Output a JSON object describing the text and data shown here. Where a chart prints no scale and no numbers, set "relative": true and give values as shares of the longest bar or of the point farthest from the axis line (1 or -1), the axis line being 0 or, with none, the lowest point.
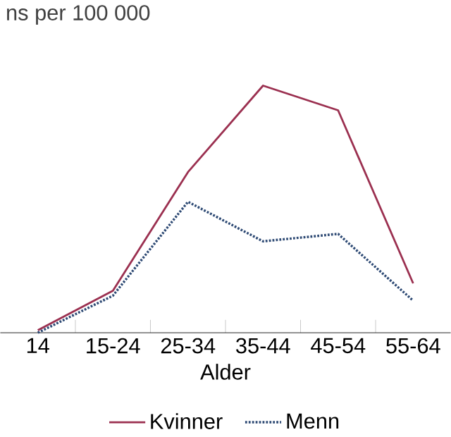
{
  "chart_data": {
    "type": "line",
    "relative": true,
    "ylabel": "ns per 100 000",
    "xlabel": "Alder",
    "categories": [
      "14",
      "15-24",
      "25-34",
      "35-44",
      "45-54",
      "55-64"
    ],
    "series": [
      {
        "name": "Kvinner",
        "color": "#9b3050",
        "line_style": "solid",
        "values": [
          0.01,
          0.17,
          0.65,
          1,
          0.9,
          0.2
        ]
      },
      {
        "name": "Menn",
        "color": "#2e4a74",
        "line_style": "dotted",
        "values": [
          0,
          0.15,
          0.53,
          0.37,
          0.4,
          0.13
        ]
      }
    ],
    "legend": "bottom",
    "marker": "none"
  }
}
